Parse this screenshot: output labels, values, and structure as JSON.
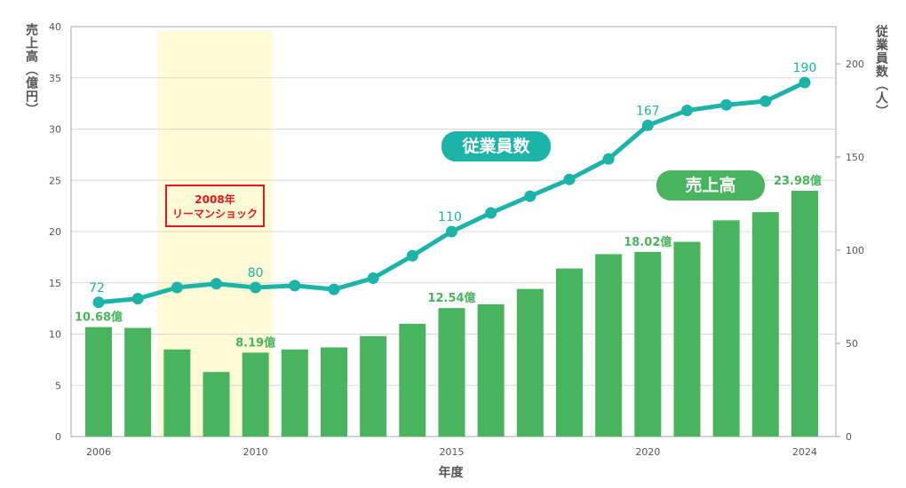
{
  "chart_data": {
    "type": "bar+line",
    "xlabel": "年度",
    "ylabel_left": "売上高（億円）",
    "ylabel_right": "従業員数（人）",
    "ylim_left": [
      0,
      40
    ],
    "ylim_right": [
      0,
      220
    ],
    "yticks_left": [
      0,
      5,
      10,
      15,
      20,
      25,
      30,
      35,
      40
    ],
    "yticks_right": [
      0,
      50,
      100,
      150,
      200
    ],
    "xticks": [
      "2006",
      "2010",
      "2015",
      "2020",
      "2024"
    ],
    "grid": true,
    "categories": [
      2006,
      2007,
      2008,
      2009,
      2010,
      2011,
      2012,
      2013,
      2014,
      2015,
      2016,
      2017,
      2018,
      2019,
      2020,
      2021,
      2022,
      2023,
      2024
    ],
    "series": [
      {
        "name": "売上高",
        "type": "bar",
        "axis": "left",
        "color": "#48b55e",
        "values": [
          10.68,
          10.6,
          8.5,
          6.3,
          8.19,
          8.5,
          8.7,
          9.8,
          11.0,
          12.54,
          12.9,
          14.4,
          16.4,
          17.8,
          18.02,
          19.0,
          21.1,
          21.9,
          23.98
        ]
      },
      {
        "name": "従業員数",
        "type": "line",
        "axis": "right",
        "color": "#1cb3a8",
        "values": [
          72,
          74,
          80,
          82,
          80,
          81,
          79,
          85,
          97,
          110,
          120,
          129,
          138,
          149,
          167,
          175,
          178,
          180,
          190
        ]
      }
    ],
    "bar_labels": [
      {
        "year": 2006,
        "text": "10.68億"
      },
      {
        "year": 2010,
        "text": "8.19億"
      },
      {
        "year": 2015,
        "text": "12.54億"
      },
      {
        "year": 2020,
        "text": "18.02億"
      },
      {
        "year": 2024,
        "text": "23.98億"
      }
    ],
    "line_labels": [
      {
        "year": 2006,
        "text": "72"
      },
      {
        "year": 2010,
        "text": "80"
      },
      {
        "year": 2015,
        "text": "110"
      },
      {
        "year": 2020,
        "text": "167"
      },
      {
        "year": 2024,
        "text": "190"
      }
    ],
    "highlight": {
      "from": 2008,
      "to": 2010,
      "color": "#fffbd6"
    },
    "annotation": {
      "line1": "2008年",
      "line2": "リーマンショック"
    },
    "legend": {
      "line": "従業員数",
      "bar": "売上高"
    }
  }
}
